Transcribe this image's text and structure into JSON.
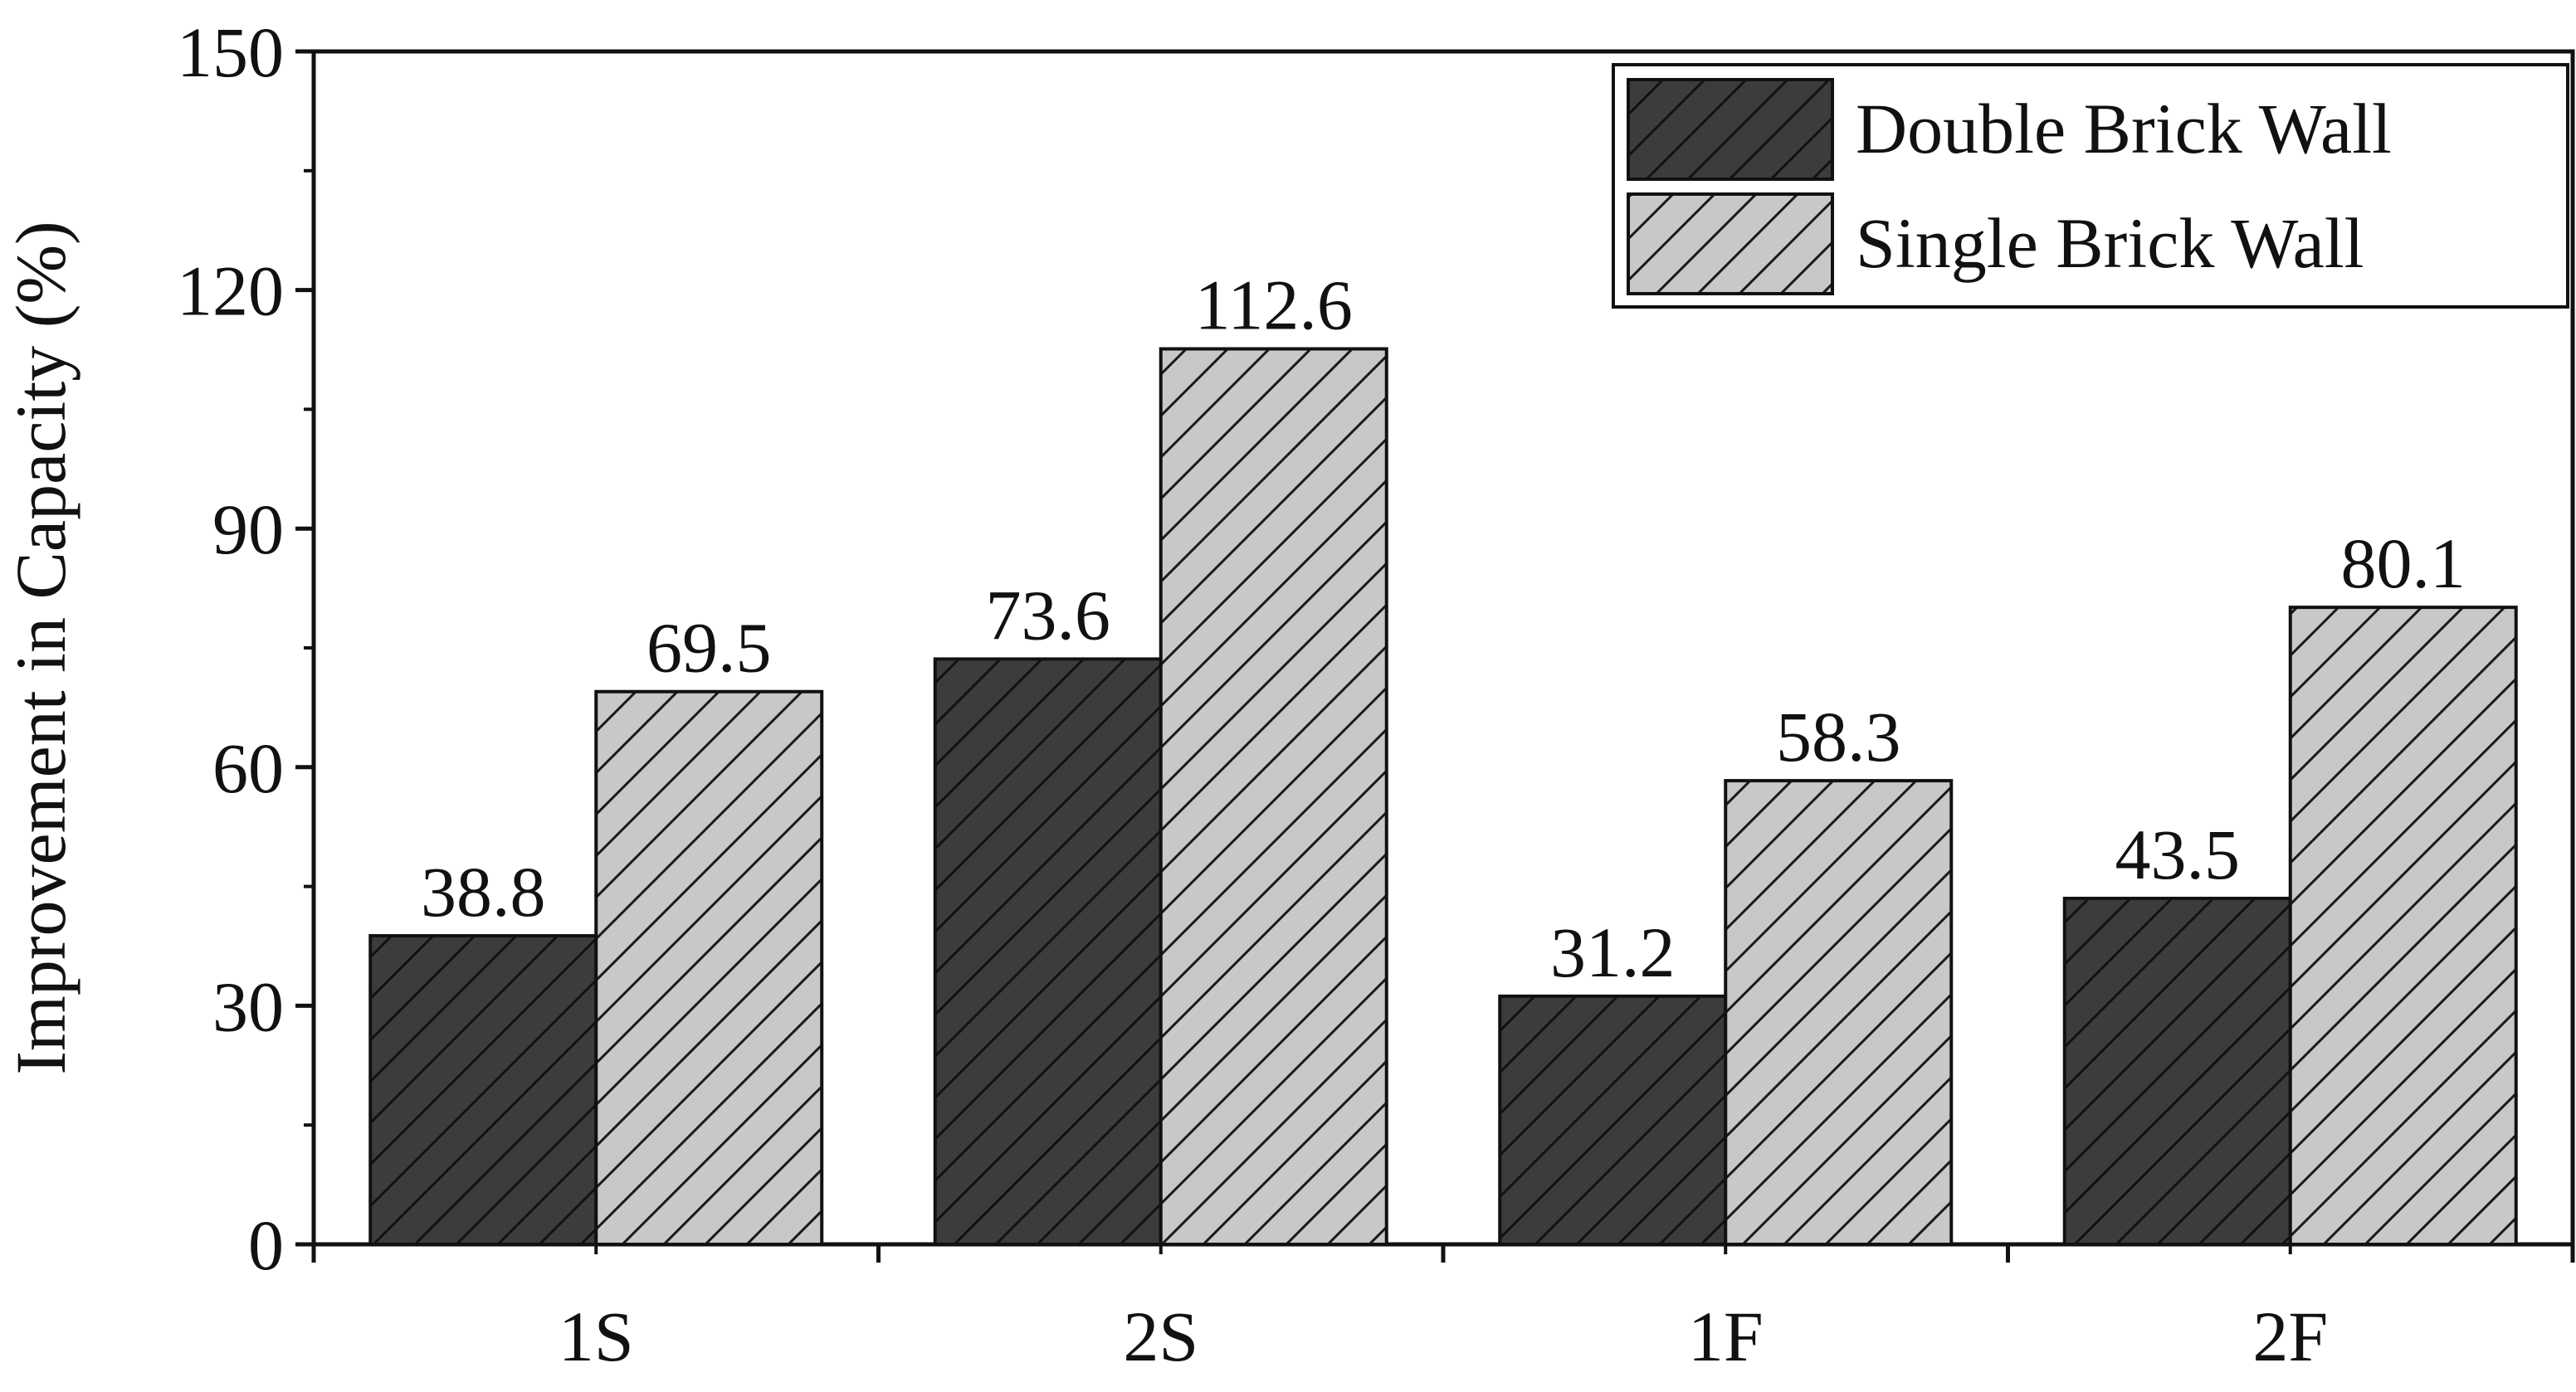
{
  "chart_data": {
    "type": "bar",
    "title": "",
    "xlabel": "",
    "ylabel": "Improvement in Capacity (%)",
    "categories": [
      "1S",
      "2S",
      "1F",
      "2F"
    ],
    "ylim": [
      0,
      150
    ],
    "yticks": [
      0,
      30,
      60,
      90,
      120,
      150
    ],
    "grid": false,
    "legend_position": "top-right",
    "series": [
      {
        "name": "Double Brick Wall",
        "values": [
          38.8,
          73.6,
          31.2,
          43.5
        ],
        "value_labels": [
          "38.8",
          "73.6",
          "31.2",
          "43.5"
        ],
        "color": "#3c3c3c",
        "pattern": "diagonal-hatch"
      },
      {
        "name": "Single Brick Wall",
        "values": [
          69.5,
          112.6,
          58.3,
          80.1
        ],
        "value_labels": [
          "69.5",
          "112.6",
          "58.3",
          "80.1"
        ],
        "color": "#c8c8c8",
        "pattern": "diagonal-hatch"
      }
    ]
  }
}
